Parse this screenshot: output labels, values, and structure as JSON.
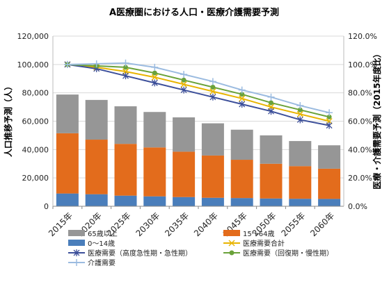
{
  "chart_data": {
    "type": "bar",
    "title": "A医療圏における人口・医療介護需要予測",
    "ylabel": "人口推移予測（人）",
    "y2label": "医療・介護需要予測（2015年度比）",
    "xlabel": "",
    "categories": [
      "2015年",
      "2020年",
      "2025年",
      "2030年",
      "2035年",
      "2040年",
      "2045年",
      "2050年",
      "2055年",
      "2060年"
    ],
    "ylim": [
      0,
      120000
    ],
    "y2lim": [
      0,
      120
    ],
    "yticks": [
      "0",
      "20,000",
      "40,000",
      "60,000",
      "80,000",
      "100,000",
      "120,000"
    ],
    "y2ticks": [
      "0.0%",
      "20.0%",
      "40.0%",
      "60.0%",
      "80.0%",
      "100.0%",
      "120.0%"
    ],
    "grid": true,
    "legend_position": "bottom",
    "bar_series": [
      {
        "name": "0～14歳",
        "color": "#4a7ebb",
        "values": [
          9000,
          8500,
          7500,
          7000,
          6500,
          6000,
          5800,
          5500,
          5300,
          5200
        ]
      },
      {
        "name": "15～64歳",
        "color": "#e36c1c",
        "values": [
          42500,
          38500,
          36500,
          34500,
          32000,
          29800,
          27000,
          24500,
          23000,
          21300
        ]
      },
      {
        "name": "65歳以上",
        "color": "#969696",
        "values": [
          27300,
          28000,
          26500,
          25000,
          24200,
          22700,
          21200,
          20000,
          17700,
          16500
        ]
      }
    ],
    "line_series": [
      {
        "name": "医療需要合計",
        "color": "#e8b400",
        "marker": "x",
        "values": [
          100,
          98,
          95,
          91,
          86,
          81,
          76,
          70,
          65,
          60
        ]
      },
      {
        "name": "医療需要（高度急性期・急性期）",
        "color": "#3c4f9a",
        "marker": "asterisk",
        "values": [
          100,
          97,
          92,
          87,
          82,
          77,
          72,
          67,
          61,
          57
        ]
      },
      {
        "name": "医療需要（回復期・慢性期）",
        "color": "#6aa23a",
        "marker": "dot",
        "values": [
          100,
          99,
          98,
          94,
          89,
          84,
          79,
          73,
          68,
          63
        ]
      },
      {
        "name": "介護需要",
        "color": "#9bbbe0",
        "marker": "plus",
        "values": [
          100,
          100.5,
          101,
          98,
          93,
          88,
          82,
          77,
          71,
          66
        ]
      }
    ],
    "legend": [
      "65歳以上",
      "15～64歳",
      "0～14歳",
      "医療需要合計",
      "医療需要（高度急性期・急性期）",
      "医療需要（回復期・慢性期）",
      "介護需要"
    ]
  }
}
